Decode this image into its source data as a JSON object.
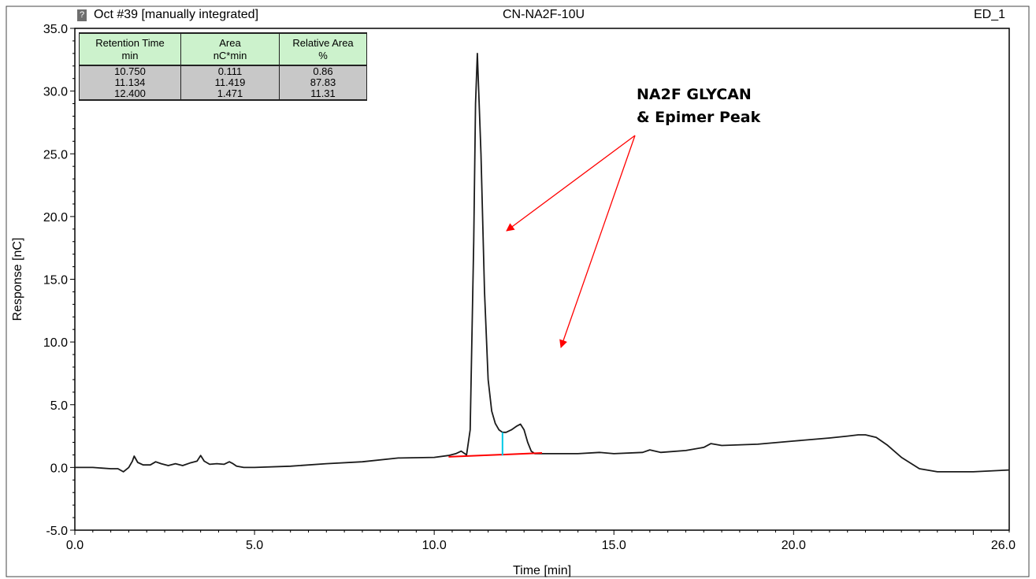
{
  "header": {
    "left": "Oct #39 [manually integrated]",
    "center": "CN-NA2F-10U",
    "right": "ED_1",
    "icon": "?"
  },
  "peak_table": {
    "headers": [
      [
        "Retention Time",
        "min"
      ],
      [
        "Area",
        "nC*min"
      ],
      [
        "Relative Area",
        "%"
      ]
    ],
    "rows": [
      [
        "10.750",
        "0.111",
        "0.86"
      ],
      [
        "11.134",
        "11.419",
        "87.83"
      ],
      [
        "12.400",
        "1.471",
        "11.31"
      ]
    ]
  },
  "annotation": {
    "line1": "NA2F GLYCAN",
    "line2": "& Epimer Peak"
  },
  "colors": {
    "trace": "#1a1a1a",
    "baseline": "#ff0000",
    "split_marker": "#00c8e6",
    "arrow": "#ff0000",
    "table_header_bg": "#ccf2cc",
    "table_body_bg": "#c8c8c8"
  },
  "chart_data": {
    "type": "line",
    "title": "CN-NA2F-10U",
    "xlabel": "Time [min]",
    "ylabel": "Response [nC]",
    "xlim": [
      0,
      26
    ],
    "ylim": [
      -5,
      35
    ],
    "x_ticks": [
      "0.0",
      "5.0",
      "10.0",
      "15.0",
      "20.0",
      "26.0"
    ],
    "x_tick_values": [
      0,
      5,
      10,
      15,
      20,
      26
    ],
    "y_ticks": [
      "35.0",
      "30.0",
      "25.0",
      "20.0",
      "15.0",
      "10.0",
      "5.0",
      "0.0",
      "-5.0"
    ],
    "y_tick_values": [
      35,
      30,
      25,
      20,
      15,
      10,
      5,
      0,
      -5
    ],
    "series": [
      {
        "x": [
          0.0,
          0.5,
          1.0,
          1.2,
          1.35,
          1.5,
          1.6,
          1.65,
          1.75,
          1.9,
          2.1,
          2.25,
          2.4,
          2.6,
          2.8,
          3.0,
          3.2,
          3.4,
          3.5,
          3.6,
          3.75,
          3.95,
          4.15,
          4.3,
          4.4,
          4.5,
          4.7,
          5.0,
          6.0,
          7.0,
          8.0,
          9.0,
          10.0,
          10.4,
          10.6,
          10.75,
          10.9,
          11.0,
          11.1,
          11.15,
          11.2,
          11.3,
          11.4,
          11.5,
          11.6,
          11.7,
          11.8,
          11.9,
          12.0,
          12.15,
          12.3,
          12.4,
          12.5,
          12.6,
          12.7,
          12.8,
          13.0,
          14.0,
          14.6,
          15.0,
          15.8,
          16.0,
          16.3,
          17.0,
          17.5,
          17.7,
          18.0,
          19.0,
          20.0,
          21.0,
          21.5,
          21.8,
          22.0,
          22.3,
          22.6,
          23.0,
          23.5,
          24.0,
          25.0,
          26.0
        ],
        "y": [
          0.0,
          0.0,
          -0.1,
          -0.1,
          -0.35,
          0.0,
          0.5,
          0.9,
          0.4,
          0.2,
          0.2,
          0.45,
          0.3,
          0.15,
          0.3,
          0.15,
          0.35,
          0.5,
          0.95,
          0.5,
          0.25,
          0.3,
          0.25,
          0.45,
          0.3,
          0.1,
          0.0,
          0.0,
          0.1,
          0.3,
          0.45,
          0.75,
          0.8,
          0.95,
          1.1,
          1.3,
          1.0,
          3.0,
          18.0,
          29.0,
          33.0,
          25.0,
          14.0,
          7.0,
          4.5,
          3.5,
          3.0,
          2.8,
          2.8,
          3.0,
          3.3,
          3.45,
          3.0,
          2.0,
          1.3,
          1.1,
          1.1,
          1.1,
          1.2,
          1.1,
          1.2,
          1.4,
          1.2,
          1.35,
          1.6,
          1.9,
          1.75,
          1.85,
          2.1,
          2.35,
          2.5,
          2.6,
          2.6,
          2.4,
          1.8,
          0.8,
          -0.1,
          -0.35,
          -0.35,
          -0.2
        ]
      }
    ],
    "baseline_segment": {
      "x": [
        10.4,
        13.0
      ],
      "y": [
        0.85,
        1.15
      ]
    },
    "split_marker": {
      "x": 11.9,
      "y": [
        0.95,
        2.8
      ]
    },
    "grid": false,
    "legend": "none"
  }
}
